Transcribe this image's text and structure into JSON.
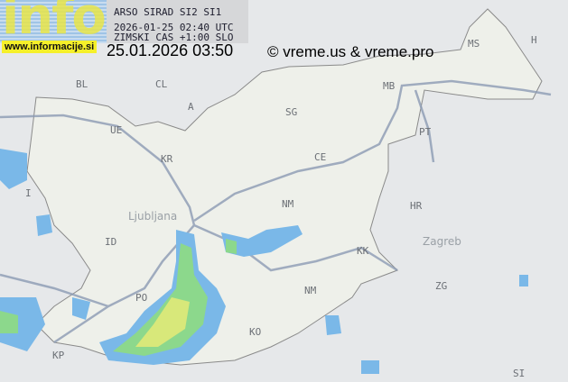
{
  "header": {
    "source_line": "ARSO SIRAD SI2 SI1",
    "utc_line": "2026-01-25 02:40 UTC",
    "local_line": "ZIMSKI CAS +1:00 SLO",
    "logo_text": "info",
    "website": "www.informacije.si",
    "local_timestamp": "25.01.2026 03:50",
    "copyright": "© vreme.us & vreme.pro"
  },
  "map": {
    "country_labels": [
      "A",
      "HR",
      "I",
      "H"
    ],
    "city_codes": [
      "BL",
      "CL",
      "UE",
      "KR",
      "MB",
      "MS",
      "SG",
      "CE",
      "PT",
      "NM",
      "KK",
      "ID",
      "PO",
      "KO",
      "KP",
      "ZG",
      "SI",
      "NM"
    ],
    "city_names": [
      "Ljubljana",
      "Zagreb"
    ],
    "colors": {
      "background": "#e6e8ea",
      "slovenia_fill": "#eef0ea",
      "border": "#8c8c8c",
      "roads": "#8c9bb4",
      "radar_light": "#7ab8e8",
      "radar_medium": "#4aa0e0",
      "radar_green": "#8cd88c",
      "radar_yellow": "#d8e87a"
    }
  }
}
